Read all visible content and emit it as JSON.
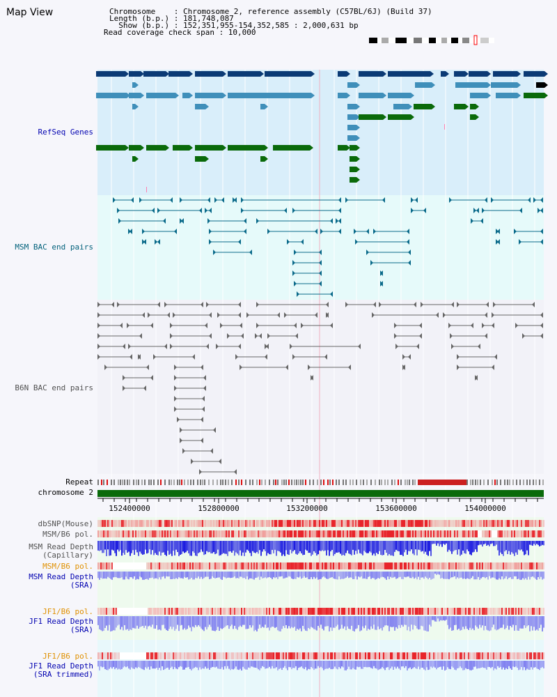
{
  "title": "Map View",
  "info": {
    "chromosome": "Chromosome    : Chromosome 2, reference assembly (C57BL/6J) (Build 37)",
    "length": "Length (b.p.) : 181,748,087",
    "show": "  Show (b.p.) : 152,351,955-154,352,585 : 2,000,631 bp",
    "coverage": "Read coverage check span : 10,000"
  },
  "tracks": {
    "refseq": "RefSeq Genes",
    "msm_bac": "MSM BAC end pairs",
    "b6n_bac": "B6N BAC end pairs",
    "repeat": "Repeat",
    "chromosome": "chromosome 2",
    "dbsnp": "dbSNP(Mouse)",
    "msm_b6_pol": "MSM/B6 pol.",
    "msm_depth_cap_1": "MSM Read Depth",
    "msm_depth_cap_2": "(Capillary)",
    "msm_b6_pol_sra": "MSM/B6 pol.",
    "msm_depth_sra_1": "MSM Read Depth",
    "msm_depth_sra_2": "(SRA)",
    "jf1_b6_pol": "JF1/B6 pol.",
    "jf1_depth_1": "JF1 Read Depth",
    "jf1_depth_2": "(SRA)",
    "jf1_b6_pol_trim": "JF1/B6 pol.",
    "jf1_trim_1": "JF1 Read Depth",
    "jf1_trim_2": "(SRA trimmed)"
  },
  "axis_ticks": [
    "152400000",
    "152800000",
    "153200000",
    "153600000",
    "154000000"
  ],
  "colors": {
    "refseq_dark": "#0b3a75",
    "refseq_light": "#3f8fba",
    "refseq_green": "#0a6a0a",
    "msm_bac": "#0a6a8a",
    "b6n_bac": "#666666",
    "chromosome": "#0a6a0a",
    "snp": "#e8242a",
    "depth_cap": "#1a1ae0",
    "depth_sra": "#8080f0"
  }
}
